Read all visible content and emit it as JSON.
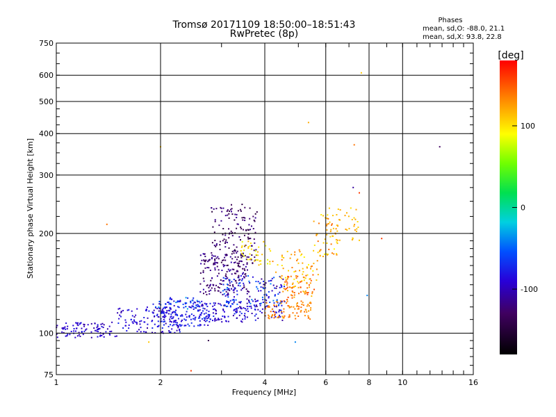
{
  "chart_data": {
    "type": "scatter",
    "title": "Tromsø 20171109 18:50:00–18:51:43",
    "subtitle": "RwPretec (8p)",
    "xlabel": "Frequency [MHz]",
    "ylabel": "Stationary phase Virtual Height [km]",
    "x_scale": "log2",
    "y_scale": "log",
    "xlim": [
      1,
      16
    ],
    "ylim": [
      75,
      750
    ],
    "xticks": [
      "1",
      "2",
      "4",
      "6",
      "8",
      "10",
      "16"
    ],
    "yticks": [
      "75",
      "100",
      "200",
      "300",
      "400",
      "500",
      "600",
      "750"
    ],
    "phase_stats": {
      "heading": "Phases",
      "line_o": "mean, sd,O: -88.0, 21.1",
      "line_x": "mean, sd,X:  93.8, 22.8"
    },
    "colorbar": {
      "unit": "[deg]",
      "range": [
        -180,
        180
      ],
      "ticks": [
        "100",
        "0",
        "-100"
      ]
    },
    "series": [
      {
        "description": "scatter clusters (frequency MHz, height km, phase deg)",
        "clusters": [
          {
            "f": [
              1.0,
              1.5
            ],
            "h": [
              97,
              108
            ],
            "phase": [
              -110,
              -80
            ],
            "n": 90
          },
          {
            "f": [
              1.5,
              2.3
            ],
            "h": [
              100,
              120
            ],
            "phase": [
              -110,
              -70
            ],
            "n": 140
          },
          {
            "f": [
              2.0,
              2.8
            ],
            "h": [
              105,
              125
            ],
            "phase": [
              -100,
              -60
            ],
            "n": 120
          },
          {
            "f": [
              2.5,
              4.5
            ],
            "h": [
              108,
              125
            ],
            "phase": [
              -110,
              -70
            ],
            "n": 160
          },
          {
            "f": [
              1.9,
              2.6
            ],
            "h": [
              118,
              128
            ],
            "phase": [
              -100,
              -30
            ],
            "n": 40
          },
          {
            "f": [
              2.6,
              3.6
            ],
            "h": [
              130,
              175
            ],
            "phase": [
              -140,
              -100
            ],
            "n": 160
          },
          {
            "f": [
              2.8,
              3.8
            ],
            "h": [
              160,
              245
            ],
            "phase": [
              -150,
              -110
            ],
            "n": 160
          },
          {
            "f": [
              3.0,
              4.6
            ],
            "h": [
              120,
              150
            ],
            "phase": [
              -120,
              -40
            ],
            "n": 140
          },
          {
            "f": [
              3.4,
              4.2
            ],
            "h": [
              160,
              190
            ],
            "phase": [
              80,
              120
            ],
            "n": 40
          },
          {
            "f": [
              4.0,
              5.5
            ],
            "h": [
              110,
              125
            ],
            "phase": [
              120,
              150
            ],
            "n": 90
          },
          {
            "f": [
              4.5,
              5.6
            ],
            "h": [
              125,
              150
            ],
            "phase": [
              110,
              160
            ],
            "n": 70
          },
          {
            "f": [
              4.2,
              5.8
            ],
            "h": [
              140,
              180
            ],
            "phase": [
              90,
              140
            ],
            "n": 60
          },
          {
            "f": [
              5.5,
              6.5
            ],
            "h": [
              170,
              230
            ],
            "phase": [
              90,
              150
            ],
            "n": 50
          },
          {
            "f": [
              6.0,
              7.5
            ],
            "h": [
              190,
              240
            ],
            "phase": [
              100,
              130
            ],
            "n": 40
          }
        ],
        "outliers": [
          {
            "f": 1.4,
            "h": 213,
            "phase": 140
          },
          {
            "f": 2.0,
            "h": 365,
            "phase": 110
          },
          {
            "f": 1.85,
            "h": 94,
            "phase": 110
          },
          {
            "f": 2.45,
            "h": 77,
            "phase": 160
          },
          {
            "f": 2.75,
            "h": 95,
            "phase": -140
          },
          {
            "f": 5.35,
            "h": 432,
            "phase": 120
          },
          {
            "f": 7.25,
            "h": 370,
            "phase": 140
          },
          {
            "f": 7.6,
            "h": 610,
            "phase": 110
          },
          {
            "f": 8.7,
            "h": 193,
            "phase": 160
          },
          {
            "f": 12.8,
            "h": 365,
            "phase": -130
          },
          {
            "f": 7.9,
            "h": 130,
            "phase": -40
          },
          {
            "f": 4.9,
            "h": 94,
            "phase": -40
          },
          {
            "f": 7.5,
            "h": 265,
            "phase": 160
          },
          {
            "f": 7.2,
            "h": 275,
            "phase": -110
          }
        ]
      }
    ]
  }
}
